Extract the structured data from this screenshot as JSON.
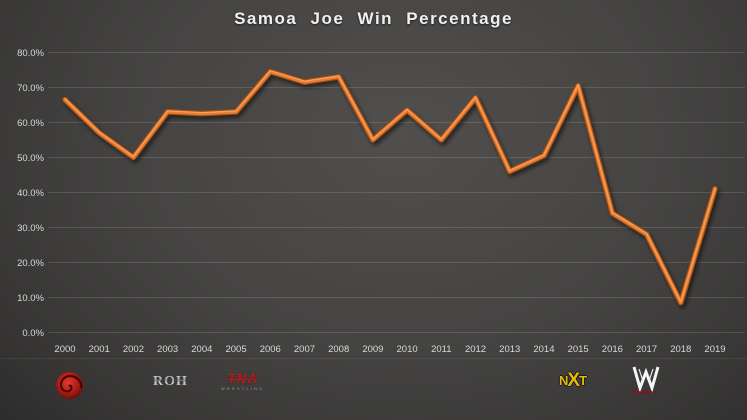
{
  "title": "Samoa Joe Win Percentage",
  "chart_data": {
    "type": "line",
    "title": "Samoa Joe Win Percentage",
    "x": [
      "2000",
      "2001",
      "2002",
      "2003",
      "2004",
      "2005",
      "2006",
      "2007",
      "2008",
      "2009",
      "2010",
      "2011",
      "2012",
      "2013",
      "2014",
      "2015",
      "2016",
      "2017",
      "2018",
      "2019"
    ],
    "series": [
      {
        "name": "Win Percentage",
        "values": [
          66.5,
          57,
          50,
          63,
          62.5,
          63,
          74.5,
          71.5,
          73,
          55,
          63.5,
          55,
          67,
          46,
          50.5,
          70.5,
          34,
          28,
          8.5,
          41
        ]
      }
    ],
    "xlabel": "",
    "ylabel": "",
    "ylim": [
      0,
      80
    ],
    "y_ticks": [
      0,
      10,
      20,
      30,
      40,
      50,
      60,
      70,
      80
    ],
    "y_tick_labels": [
      "0.0%",
      "10.0%",
      "20.0%",
      "30.0%",
      "40.0%",
      "50.0%",
      "60.0%",
      "70.0%",
      "80.0%"
    ],
    "grid": "horizontal",
    "legend": "none",
    "line_color": "#ED7D31",
    "background": "dark-gray-gradient"
  },
  "colors": {
    "line_accent": "#ED7D31",
    "title_text": "#f1f1f1",
    "tick_text": "#d9d9d9",
    "gridline": "rgba(255,255,255,0.13)",
    "bg_center": "#514f4d",
    "bg_edge": "#222120",
    "nxt_gold": "#e6b90e",
    "tna_red": "#b01f1f",
    "upw_red": "#c9201a"
  },
  "logos": [
    {
      "id": "upw",
      "name": "red spiral promotion logo"
    },
    {
      "id": "roh",
      "text": "ROH"
    },
    {
      "id": "tna",
      "text": "TNA",
      "subtext": "WRESTLING"
    },
    {
      "id": "nxt",
      "letters": [
        "N",
        "X",
        "T"
      ]
    },
    {
      "id": "wwe",
      "name": "WWE W logo"
    }
  ]
}
